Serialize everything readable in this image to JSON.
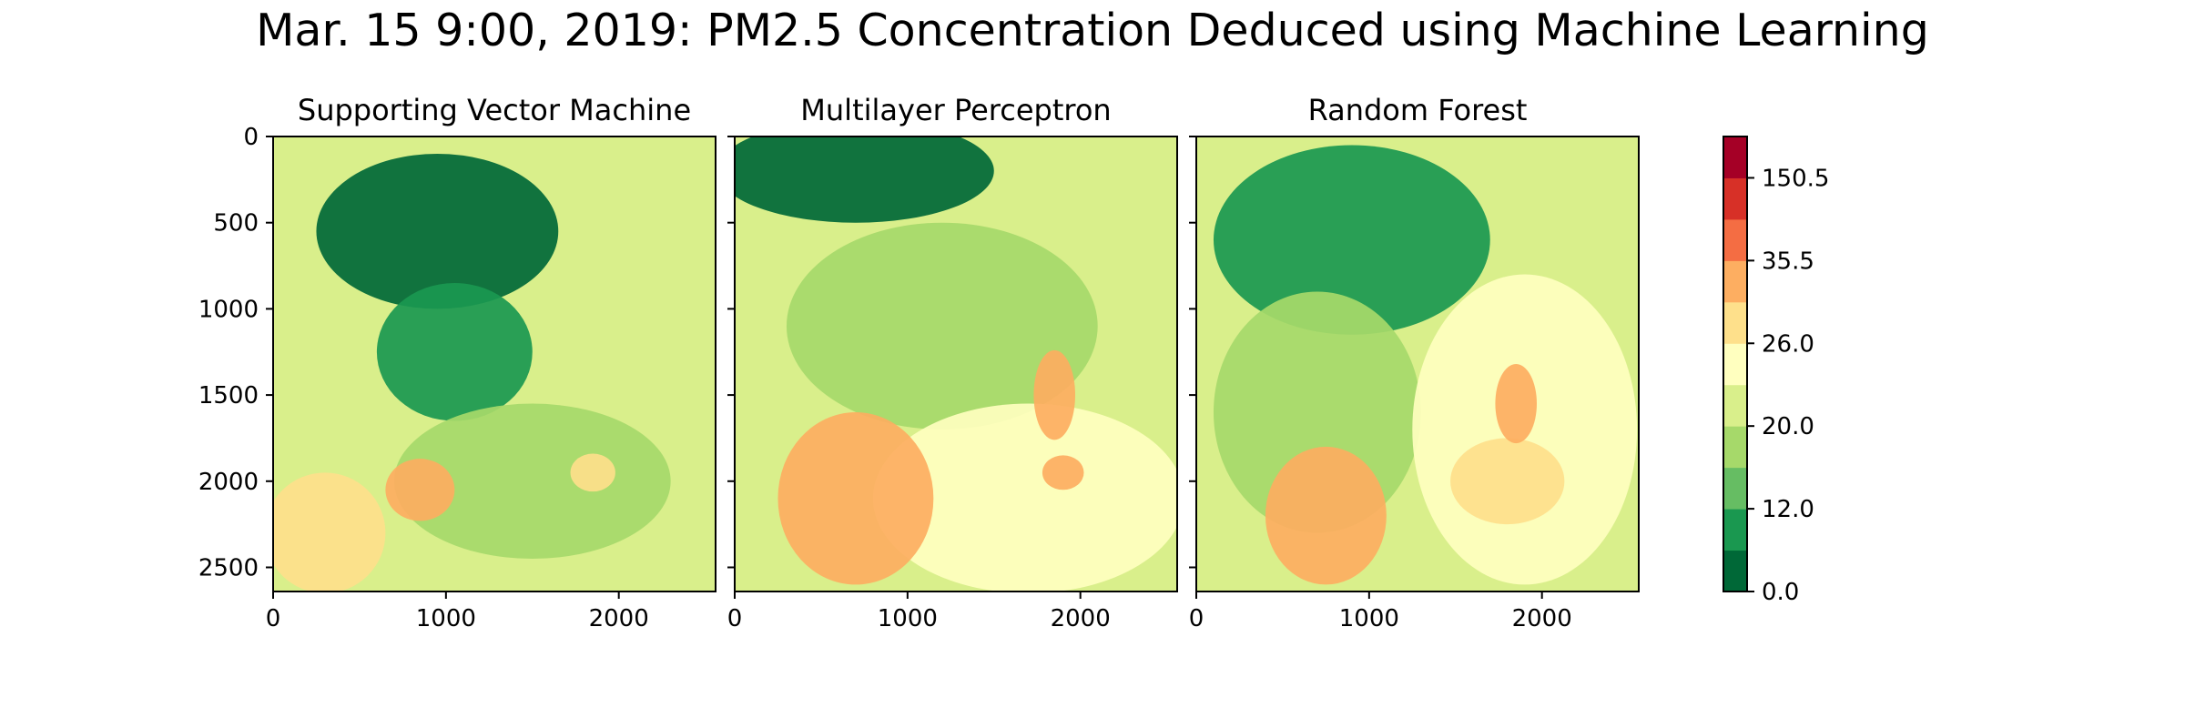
{
  "title": "Mar. 15 9:00, 2019: PM2.5 Concentration Deduced using Machine Learning",
  "chart_data": {
    "type": "heatmap",
    "title": "Mar. 15 9:00, 2019: PM2.5 Concentration Deduced using Machine Learning",
    "xlim": [
      0,
      2560
    ],
    "ylim": [
      2640,
      0
    ],
    "x_ticks": [
      "0",
      "1000",
      "2000"
    ],
    "y_ticks": [
      "0",
      "500",
      "1000",
      "1500",
      "2000",
      "2500"
    ],
    "panels": [
      {
        "title": "Supporting Vector Machine",
        "regions": [
          {
            "level": 0,
            "cx": 950,
            "cy": 550,
            "rx": 700,
            "ry": 450
          },
          {
            "level": 1,
            "cx": 1050,
            "cy": 1250,
            "rx": 450,
            "ry": 400
          },
          {
            "level": 3,
            "cx": 1500,
            "cy": 2000,
            "rx": 800,
            "ry": 450
          },
          {
            "level": 6,
            "cx": 1850,
            "cy": 1950,
            "rx": 130,
            "ry": 110
          },
          {
            "level": 7,
            "cx": 850,
            "cy": 2050,
            "rx": 200,
            "ry": 180
          },
          {
            "level": 6,
            "cx": 300,
            "cy": 2300,
            "rx": 350,
            "ry": 350
          }
        ]
      },
      {
        "title": "Multilayer Perceptron",
        "regions": [
          {
            "level": 0,
            "cx": 700,
            "cy": 200,
            "rx": 800,
            "ry": 300
          },
          {
            "level": 3,
            "cx": 1200,
            "cy": 1100,
            "rx": 900,
            "ry": 600
          },
          {
            "level": 5,
            "cx": 1700,
            "cy": 2100,
            "rx": 900,
            "ry": 550
          },
          {
            "level": 7,
            "cx": 700,
            "cy": 2100,
            "rx": 450,
            "ry": 500
          },
          {
            "level": 7,
            "cx": 1850,
            "cy": 1500,
            "rx": 120,
            "ry": 260
          },
          {
            "level": 7,
            "cx": 1900,
            "cy": 1950,
            "rx": 120,
            "ry": 100
          }
        ]
      },
      {
        "title": "Random Forest",
        "regions": [
          {
            "level": 1,
            "cx": 900,
            "cy": 600,
            "rx": 800,
            "ry": 550
          },
          {
            "level": 3,
            "cx": 700,
            "cy": 1600,
            "rx": 600,
            "ry": 700
          },
          {
            "level": 5,
            "cx": 1900,
            "cy": 1700,
            "rx": 650,
            "ry": 900
          },
          {
            "level": 6,
            "cx": 1800,
            "cy": 2000,
            "rx": 330,
            "ry": 250
          },
          {
            "level": 7,
            "cx": 750,
            "cy": 2200,
            "rx": 350,
            "ry": 400
          },
          {
            "level": 7,
            "cx": 1850,
            "cy": 1550,
            "rx": 120,
            "ry": 230
          }
        ]
      }
    ],
    "colorbar": {
      "labels": [
        "0.0",
        "12.0",
        "20.0",
        "26.0",
        "35.5",
        "150.5"
      ],
      "colors": [
        "#006837",
        "#1a9850",
        "#66bd63",
        "#a6d96a",
        "#d9ef8b",
        "#ffffbf",
        "#fee08b",
        "#fdae61",
        "#f46d43",
        "#d73027",
        "#a50026"
      ]
    },
    "grid": false
  }
}
